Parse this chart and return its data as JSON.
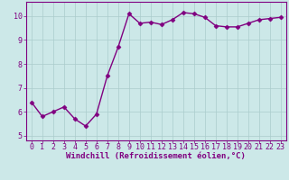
{
  "x": [
    0,
    1,
    2,
    3,
    4,
    5,
    6,
    7,
    8,
    9,
    10,
    11,
    12,
    13,
    14,
    15,
    16,
    17,
    18,
    19,
    20,
    21,
    22,
    23
  ],
  "y": [
    6.4,
    5.8,
    6.0,
    6.2,
    5.7,
    5.4,
    5.9,
    7.5,
    8.7,
    10.1,
    9.7,
    9.75,
    9.65,
    9.85,
    10.15,
    10.1,
    9.95,
    9.6,
    9.55,
    9.55,
    9.7,
    9.85,
    9.9,
    9.95
  ],
  "line_color": "#800080",
  "marker": "D",
  "marker_size": 2.5,
  "linewidth": 1.0,
  "bg_color": "#cce8e8",
  "grid_color": "#aacccc",
  "xlabel": "Windchill (Refroidissement éolien,°C)",
  "xlabel_color": "#800080",
  "xlabel_fontsize": 6.5,
  "tick_color": "#800080",
  "tick_fontsize": 6,
  "ylim": [
    4.8,
    10.6
  ],
  "xlim": [
    -0.5,
    23.5
  ],
  "yticks": [
    5,
    6,
    7,
    8,
    9,
    10
  ],
  "xticks": [
    0,
    1,
    2,
    3,
    4,
    5,
    6,
    7,
    8,
    9,
    10,
    11,
    12,
    13,
    14,
    15,
    16,
    17,
    18,
    19,
    20,
    21,
    22,
    23
  ]
}
